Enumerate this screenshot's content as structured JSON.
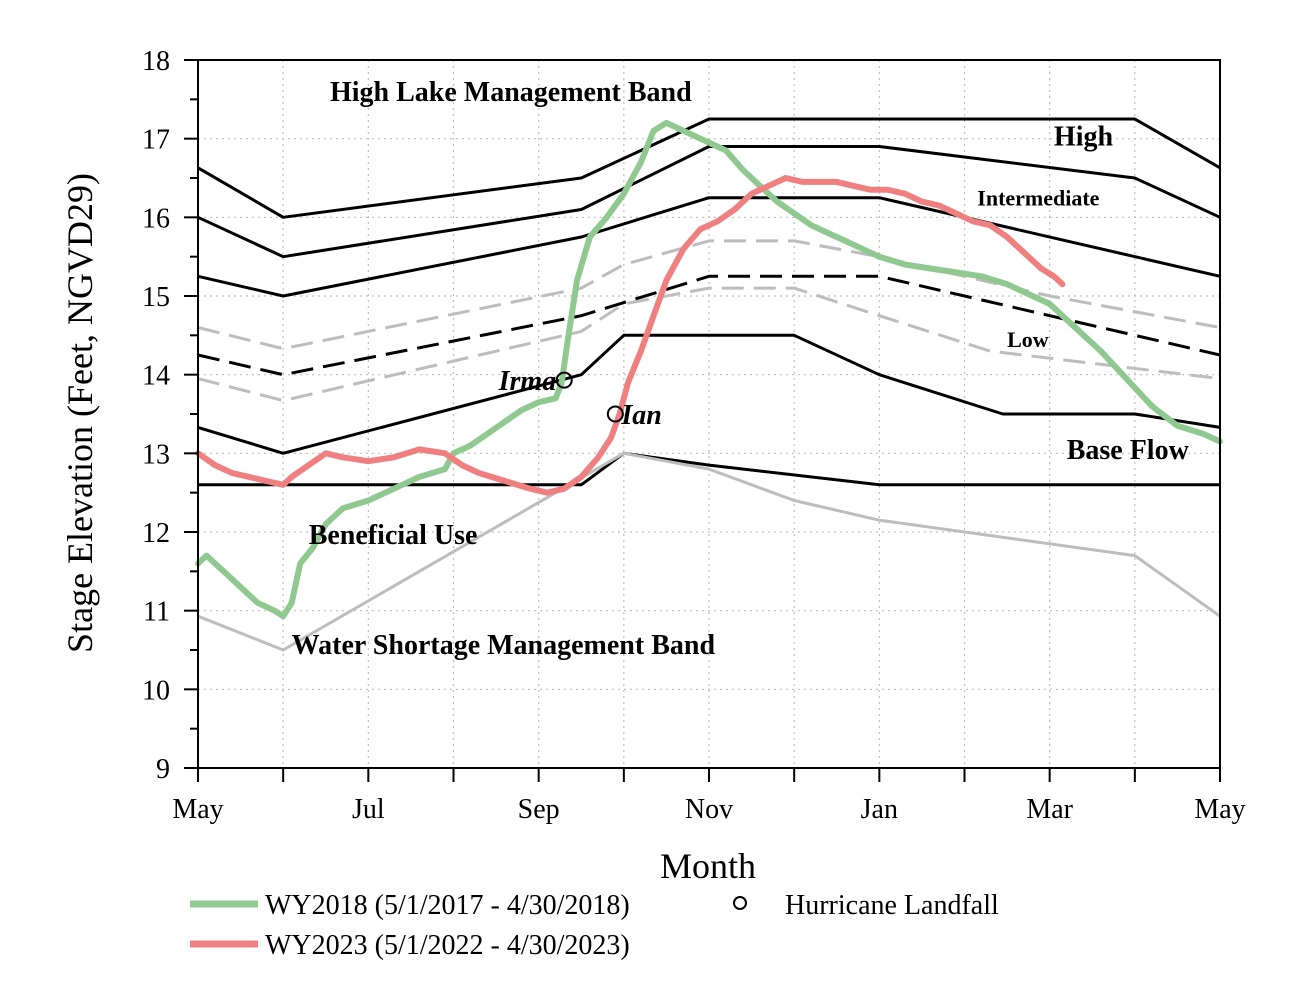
{
  "chart_data": {
    "type": "line",
    "xlabel": "Month",
    "ylabel": "Stage Elevation (Feet, NGVD29)",
    "ylim": [
      9,
      18
    ],
    "xlim": [
      0,
      12
    ],
    "x_unit": "months since May 1",
    "x_ticks": [
      {
        "x": 0,
        "label": "May"
      },
      {
        "x": 2,
        "label": "Jul"
      },
      {
        "x": 4,
        "label": "Sep"
      },
      {
        "x": 6,
        "label": "Nov"
      },
      {
        "x": 8,
        "label": "Jan"
      },
      {
        "x": 10,
        "label": "Mar"
      },
      {
        "x": 12,
        "label": "May"
      }
    ],
    "x_minor_ticks": [
      1,
      3,
      5,
      7,
      9,
      11
    ],
    "y_ticks": [
      9,
      10,
      11,
      12,
      13,
      14,
      15,
      16,
      17,
      18
    ],
    "grid": true,
    "band_labels": [
      {
        "text": "High Lake Management Band",
        "x": 1.55,
        "y": 17.48,
        "style": "large"
      },
      {
        "text": "High",
        "x": 10.05,
        "y": 16.91,
        "style": "large"
      },
      {
        "text": "Intermediate",
        "x": 9.15,
        "y": 16.15,
        "style": "small"
      },
      {
        "text": "Low",
        "x": 9.5,
        "y": 14.35,
        "style": "small"
      },
      {
        "text": "Base Flow",
        "x": 10.2,
        "y": 12.93,
        "style": "large"
      },
      {
        "text": "Beneficial Use",
        "x": 1.3,
        "y": 11.85,
        "style": "large"
      },
      {
        "text": "Water Shortage Management Band",
        "x": 1.1,
        "y": 10.45,
        "style": "large"
      }
    ],
    "reference_lines": [
      {
        "name": "High band top",
        "color": "#000000",
        "style": "solid",
        "points": [
          [
            0,
            16.63
          ],
          [
            1,
            16.0
          ],
          [
            4.5,
            16.5
          ],
          [
            6,
            17.25
          ],
          [
            11,
            17.25
          ],
          [
            12,
            16.63
          ]
        ]
      },
      {
        "name": "High/Intermediate",
        "color": "#000000",
        "style": "solid",
        "points": [
          [
            0,
            16.0
          ],
          [
            1,
            15.5
          ],
          [
            4.5,
            16.1
          ],
          [
            6,
            16.9
          ],
          [
            8,
            16.9
          ],
          [
            11,
            16.5
          ],
          [
            12,
            16.0
          ]
        ]
      },
      {
        "name": "Intermediate/Low",
        "color": "#000000",
        "style": "solid",
        "points": [
          [
            0,
            15.25
          ],
          [
            1,
            15.0
          ],
          [
            4.5,
            15.75
          ],
          [
            6,
            16.25
          ],
          [
            8,
            16.25
          ],
          [
            12,
            15.25
          ]
        ]
      },
      {
        "name": "Low upper",
        "color": "#bdbdbd",
        "style": "dashed",
        "points": [
          [
            0,
            14.6
          ],
          [
            1,
            14.33
          ],
          [
            4.5,
            15.1
          ],
          [
            5,
            15.4
          ],
          [
            6,
            15.7
          ],
          [
            7,
            15.7
          ],
          [
            8,
            15.5
          ],
          [
            10,
            15.0
          ],
          [
            12,
            14.6
          ]
        ]
      },
      {
        "name": "Low middle",
        "color": "#000000",
        "style": "dashed",
        "points": [
          [
            0,
            14.25
          ],
          [
            1,
            14.0
          ],
          [
            4.5,
            14.75
          ],
          [
            6,
            15.25
          ],
          [
            8,
            15.25
          ],
          [
            12,
            14.25
          ]
        ]
      },
      {
        "name": "Low lower",
        "color": "#bdbdbd",
        "style": "dashed",
        "points": [
          [
            0,
            13.95
          ],
          [
            1,
            13.67
          ],
          [
            4.5,
            14.55
          ],
          [
            5,
            14.9
          ],
          [
            6,
            15.1
          ],
          [
            7,
            15.1
          ],
          [
            8,
            14.75
          ],
          [
            9.3,
            14.3
          ],
          [
            12,
            13.95
          ]
        ]
      },
      {
        "name": "Base Flow/Beneficial Use",
        "color": "#000000",
        "style": "solid",
        "points": [
          [
            0,
            13.33
          ],
          [
            1,
            13.0
          ],
          [
            4.5,
            14.0
          ],
          [
            5,
            14.5
          ],
          [
            7,
            14.5
          ],
          [
            8,
            14.0
          ],
          [
            9.45,
            13.5
          ],
          [
            11,
            13.5
          ],
          [
            12,
            13.33
          ]
        ]
      },
      {
        "name": "Water Shortage line",
        "color": "#000000",
        "style": "solid",
        "points": [
          [
            0,
            12.6
          ],
          [
            4.5,
            12.6
          ],
          [
            5,
            13.0
          ],
          [
            6,
            12.85
          ],
          [
            8,
            12.6
          ],
          [
            12,
            12.6
          ]
        ]
      },
      {
        "name": "Water Shortage band",
        "color": "#bdbdbd",
        "style": "solid",
        "points": [
          [
            0,
            10.93
          ],
          [
            1,
            10.5
          ],
          [
            5,
            13.0
          ],
          [
            6,
            12.8
          ],
          [
            7,
            12.4
          ],
          [
            8,
            12.15
          ],
          [
            11,
            11.7
          ],
          [
            12,
            10.93
          ]
        ]
      }
    ],
    "series": [
      {
        "name": "WY2018 (5/1/2017 - 4/30/2018)",
        "color": "#8fc98f",
        "points": [
          [
            0,
            11.6
          ],
          [
            0.1,
            11.7
          ],
          [
            0.3,
            11.5
          ],
          [
            0.5,
            11.3
          ],
          [
            0.7,
            11.1
          ],
          [
            0.9,
            11.0
          ],
          [
            1.0,
            10.93
          ],
          [
            1.1,
            11.1
          ],
          [
            1.2,
            11.6
          ],
          [
            1.35,
            11.8
          ],
          [
            1.5,
            12.1
          ],
          [
            1.7,
            12.3
          ],
          [
            2.0,
            12.4
          ],
          [
            2.3,
            12.55
          ],
          [
            2.6,
            12.7
          ],
          [
            2.9,
            12.8
          ],
          [
            3.0,
            13.0
          ],
          [
            3.2,
            13.1
          ],
          [
            3.4,
            13.25
          ],
          [
            3.6,
            13.4
          ],
          [
            3.8,
            13.55
          ],
          [
            4.0,
            13.65
          ],
          [
            4.2,
            13.7
          ],
          [
            4.27,
            13.9
          ],
          [
            4.35,
            14.5
          ],
          [
            4.45,
            15.2
          ],
          [
            4.6,
            15.75
          ],
          [
            4.8,
            16.0
          ],
          [
            5.0,
            16.3
          ],
          [
            5.2,
            16.7
          ],
          [
            5.35,
            17.1
          ],
          [
            5.5,
            17.2
          ],
          [
            5.7,
            17.1
          ],
          [
            5.9,
            17.0
          ],
          [
            6.0,
            16.95
          ],
          [
            6.2,
            16.85
          ],
          [
            6.4,
            16.6
          ],
          [
            6.6,
            16.4
          ],
          [
            6.8,
            16.2
          ],
          [
            7.0,
            16.05
          ],
          [
            7.2,
            15.9
          ],
          [
            7.4,
            15.8
          ],
          [
            7.6,
            15.7
          ],
          [
            7.8,
            15.6
          ],
          [
            8.0,
            15.5
          ],
          [
            8.3,
            15.4
          ],
          [
            8.6,
            15.35
          ],
          [
            8.9,
            15.3
          ],
          [
            9.2,
            15.25
          ],
          [
            9.5,
            15.15
          ],
          [
            9.8,
            15.0
          ],
          [
            10.0,
            14.9
          ],
          [
            10.3,
            14.6
          ],
          [
            10.6,
            14.3
          ],
          [
            10.9,
            13.95
          ],
          [
            11.2,
            13.6
          ],
          [
            11.5,
            13.35
          ],
          [
            11.8,
            13.25
          ],
          [
            12.0,
            13.15
          ]
        ]
      },
      {
        "name": "WY2023 (5/1/2022 - 4/30/2023)",
        "color": "#f08080",
        "points": [
          [
            0,
            13.0
          ],
          [
            0.2,
            12.85
          ],
          [
            0.4,
            12.75
          ],
          [
            0.6,
            12.7
          ],
          [
            0.8,
            12.65
          ],
          [
            1.0,
            12.6
          ],
          [
            1.1,
            12.7
          ],
          [
            1.3,
            12.85
          ],
          [
            1.5,
            13.0
          ],
          [
            1.7,
            12.95
          ],
          [
            2.0,
            12.9
          ],
          [
            2.3,
            12.95
          ],
          [
            2.6,
            13.05
          ],
          [
            2.9,
            13.0
          ],
          [
            3.1,
            12.85
          ],
          [
            3.3,
            12.75
          ],
          [
            3.6,
            12.65
          ],
          [
            3.9,
            12.55
          ],
          [
            4.1,
            12.5
          ],
          [
            4.3,
            12.55
          ],
          [
            4.5,
            12.7
          ],
          [
            4.7,
            12.95
          ],
          [
            4.85,
            13.2
          ],
          [
            4.95,
            13.5
          ],
          [
            5.05,
            13.9
          ],
          [
            5.2,
            14.3
          ],
          [
            5.35,
            14.75
          ],
          [
            5.5,
            15.2
          ],
          [
            5.7,
            15.6
          ],
          [
            5.9,
            15.85
          ],
          [
            6.1,
            15.95
          ],
          [
            6.3,
            16.1
          ],
          [
            6.5,
            16.3
          ],
          [
            6.7,
            16.4
          ],
          [
            6.9,
            16.5
          ],
          [
            7.1,
            16.45
          ],
          [
            7.3,
            16.45
          ],
          [
            7.5,
            16.45
          ],
          [
            7.7,
            16.4
          ],
          [
            7.9,
            16.35
          ],
          [
            8.1,
            16.35
          ],
          [
            8.3,
            16.3
          ],
          [
            8.5,
            16.2
          ],
          [
            8.7,
            16.15
          ],
          [
            8.9,
            16.05
          ],
          [
            9.1,
            15.95
          ],
          [
            9.3,
            15.9
          ],
          [
            9.5,
            15.75
          ],
          [
            9.7,
            15.55
          ],
          [
            9.9,
            15.35
          ],
          [
            10.05,
            15.25
          ],
          [
            10.15,
            15.15
          ]
        ]
      }
    ],
    "hurricanes": [
      {
        "label": "Irma",
        "x": 4.3,
        "y": 13.93
      },
      {
        "label": "Ian",
        "x": 4.9,
        "y": 13.5
      }
    ],
    "legend": {
      "placement": "bottom",
      "hurricane_label": "Hurricane Landfall"
    }
  }
}
